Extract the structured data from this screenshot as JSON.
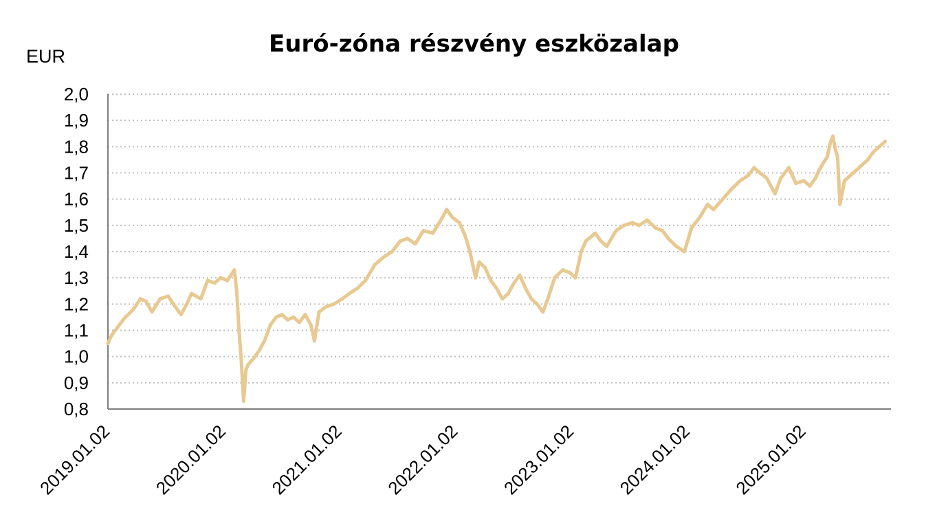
{
  "chart_data": {
    "type": "line",
    "title": "Euró-zóna részvény eszközalap",
    "ylabel": "EUR",
    "xlabel": "",
    "ylim": [
      0.8,
      2.0
    ],
    "y_ticks": [
      "2,0",
      "1,9",
      "1,8",
      "1,7",
      "1,6",
      "1,5",
      "1,4",
      "1,3",
      "1,2",
      "1,1",
      "1,0",
      "0,9",
      "0,8"
    ],
    "y_tick_values": [
      2.0,
      1.9,
      1.8,
      1.7,
      1.6,
      1.5,
      1.4,
      1.3,
      1.2,
      1.1,
      1.0,
      0.9,
      0.8
    ],
    "x_ticks": [
      "2019.01.02",
      "2020.01.02",
      "2021.01.02",
      "2022.01.02",
      "2023.01.02",
      "2024.01.02",
      "2025.01.02"
    ],
    "x_tick_years": [
      2019.0,
      2020.0,
      2021.0,
      2022.0,
      2023.0,
      2024.0,
      2025.0
    ],
    "xlim": [
      2019.0,
      2025.75
    ],
    "grid": true,
    "line_color": "#E8C992",
    "series": [
      {
        "name": "Euró-zóna részvény eszközalap",
        "x": [
          2019.0,
          2019.03,
          2019.08,
          2019.15,
          2019.22,
          2019.28,
          2019.33,
          2019.38,
          2019.45,
          2019.52,
          2019.58,
          2019.63,
          2019.68,
          2019.72,
          2019.8,
          2019.86,
          2019.92,
          2019.97,
          2020.03,
          2020.06,
          2020.09,
          2020.11,
          2020.13,
          2020.15,
          2020.17,
          2020.19,
          2020.21,
          2020.25,
          2020.3,
          2020.35,
          2020.4,
          2020.45,
          2020.5,
          2020.55,
          2020.6,
          2020.65,
          2020.7,
          2020.75,
          2020.78,
          2020.82,
          2020.88,
          2020.95,
          2021.02,
          2021.08,
          2021.15,
          2021.22,
          2021.3,
          2021.38,
          2021.45,
          2021.52,
          2021.58,
          2021.65,
          2021.72,
          2021.8,
          2021.87,
          2021.92,
          2021.97,
          2022.03,
          2022.08,
          2022.12,
          2022.17,
          2022.2,
          2022.25,
          2022.3,
          2022.35,
          2022.4,
          2022.45,
          2022.5,
          2022.55,
          2022.6,
          2022.65,
          2022.7,
          2022.75,
          2022.8,
          2022.85,
          2022.92,
          2022.98,
          2023.03,
          2023.08,
          2023.12,
          2023.2,
          2023.25,
          2023.3,
          2023.38,
          2023.45,
          2023.52,
          2023.58,
          2023.65,
          2023.72,
          2023.78,
          2023.83,
          2023.9,
          2023.97,
          2024.03,
          2024.1,
          2024.17,
          2024.22,
          2024.3,
          2024.38,
          2024.45,
          2024.52,
          2024.57,
          2024.62,
          2024.68,
          2024.75,
          2024.8,
          2024.87,
          2024.93,
          2025.0,
          2025.05,
          2025.1,
          2025.13,
          2025.17,
          2025.2,
          2025.23,
          2025.25,
          2025.27,
          2025.29,
          2025.31,
          2025.35,
          2025.4,
          2025.45,
          2025.5,
          2025.55,
          2025.6,
          2025.65,
          2025.7
        ],
        "values": [
          1.05,
          1.08,
          1.11,
          1.15,
          1.18,
          1.22,
          1.21,
          1.17,
          1.22,
          1.23,
          1.19,
          1.16,
          1.2,
          1.24,
          1.22,
          1.29,
          1.28,
          1.3,
          1.29,
          1.31,
          1.33,
          1.25,
          1.1,
          0.98,
          0.83,
          0.95,
          0.97,
          0.99,
          1.02,
          1.06,
          1.12,
          1.15,
          1.16,
          1.14,
          1.15,
          1.13,
          1.16,
          1.12,
          1.06,
          1.17,
          1.19,
          1.2,
          1.22,
          1.24,
          1.26,
          1.29,
          1.35,
          1.38,
          1.4,
          1.44,
          1.45,
          1.43,
          1.48,
          1.47,
          1.52,
          1.56,
          1.53,
          1.51,
          1.46,
          1.4,
          1.3,
          1.36,
          1.34,
          1.29,
          1.26,
          1.22,
          1.24,
          1.28,
          1.31,
          1.26,
          1.22,
          1.2,
          1.17,
          1.23,
          1.3,
          1.33,
          1.32,
          1.3,
          1.4,
          1.44,
          1.47,
          1.44,
          1.42,
          1.48,
          1.5,
          1.51,
          1.5,
          1.52,
          1.49,
          1.48,
          1.45,
          1.42,
          1.4,
          1.49,
          1.53,
          1.58,
          1.56,
          1.6,
          1.64,
          1.67,
          1.69,
          1.72,
          1.7,
          1.68,
          1.62,
          1.68,
          1.72,
          1.66,
          1.67,
          1.65,
          1.68,
          1.71,
          1.74,
          1.76,
          1.82,
          1.84,
          1.79,
          1.76,
          1.58,
          1.67,
          1.69,
          1.71,
          1.73,
          1.75,
          1.78,
          1.8,
          1.82
        ]
      }
    ]
  }
}
